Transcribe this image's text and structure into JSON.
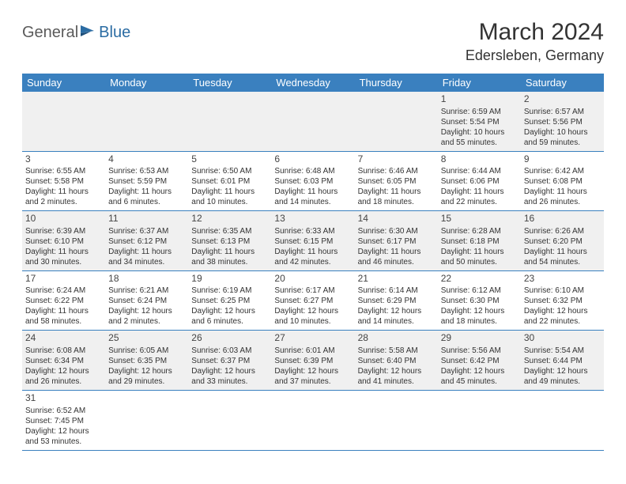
{
  "logo": {
    "text1": "General",
    "text2": "Blue"
  },
  "title": "March 2024",
  "location": "Edersleben, Germany",
  "colors": {
    "header_bg": "#3a80bf",
    "header_text": "#ffffff",
    "row_alt": "#f0f0f0",
    "border": "#3a80bf",
    "logo_gray": "#5a5a5a",
    "logo_blue": "#2b6ca3"
  },
  "daysOfWeek": [
    "Sunday",
    "Monday",
    "Tuesday",
    "Wednesday",
    "Thursday",
    "Friday",
    "Saturday"
  ],
  "weeks": [
    [
      null,
      null,
      null,
      null,
      null,
      {
        "n": "1",
        "sr": "6:59 AM",
        "ss": "5:54 PM",
        "dl": "10 hours and 55 minutes."
      },
      {
        "n": "2",
        "sr": "6:57 AM",
        "ss": "5:56 PM",
        "dl": "10 hours and 59 minutes."
      }
    ],
    [
      {
        "n": "3",
        "sr": "6:55 AM",
        "ss": "5:58 PM",
        "dl": "11 hours and 2 minutes."
      },
      {
        "n": "4",
        "sr": "6:53 AM",
        "ss": "5:59 PM",
        "dl": "11 hours and 6 minutes."
      },
      {
        "n": "5",
        "sr": "6:50 AM",
        "ss": "6:01 PM",
        "dl": "11 hours and 10 minutes."
      },
      {
        "n": "6",
        "sr": "6:48 AM",
        "ss": "6:03 PM",
        "dl": "11 hours and 14 minutes."
      },
      {
        "n": "7",
        "sr": "6:46 AM",
        "ss": "6:05 PM",
        "dl": "11 hours and 18 minutes."
      },
      {
        "n": "8",
        "sr": "6:44 AM",
        "ss": "6:06 PM",
        "dl": "11 hours and 22 minutes."
      },
      {
        "n": "9",
        "sr": "6:42 AM",
        "ss": "6:08 PM",
        "dl": "11 hours and 26 minutes."
      }
    ],
    [
      {
        "n": "10",
        "sr": "6:39 AM",
        "ss": "6:10 PM",
        "dl": "11 hours and 30 minutes."
      },
      {
        "n": "11",
        "sr": "6:37 AM",
        "ss": "6:12 PM",
        "dl": "11 hours and 34 minutes."
      },
      {
        "n": "12",
        "sr": "6:35 AM",
        "ss": "6:13 PM",
        "dl": "11 hours and 38 minutes."
      },
      {
        "n": "13",
        "sr": "6:33 AM",
        "ss": "6:15 PM",
        "dl": "11 hours and 42 minutes."
      },
      {
        "n": "14",
        "sr": "6:30 AM",
        "ss": "6:17 PM",
        "dl": "11 hours and 46 minutes."
      },
      {
        "n": "15",
        "sr": "6:28 AM",
        "ss": "6:18 PM",
        "dl": "11 hours and 50 minutes."
      },
      {
        "n": "16",
        "sr": "6:26 AM",
        "ss": "6:20 PM",
        "dl": "11 hours and 54 minutes."
      }
    ],
    [
      {
        "n": "17",
        "sr": "6:24 AM",
        "ss": "6:22 PM",
        "dl": "11 hours and 58 minutes."
      },
      {
        "n": "18",
        "sr": "6:21 AM",
        "ss": "6:24 PM",
        "dl": "12 hours and 2 minutes."
      },
      {
        "n": "19",
        "sr": "6:19 AM",
        "ss": "6:25 PM",
        "dl": "12 hours and 6 minutes."
      },
      {
        "n": "20",
        "sr": "6:17 AM",
        "ss": "6:27 PM",
        "dl": "12 hours and 10 minutes."
      },
      {
        "n": "21",
        "sr": "6:14 AM",
        "ss": "6:29 PM",
        "dl": "12 hours and 14 minutes."
      },
      {
        "n": "22",
        "sr": "6:12 AM",
        "ss": "6:30 PM",
        "dl": "12 hours and 18 minutes."
      },
      {
        "n": "23",
        "sr": "6:10 AM",
        "ss": "6:32 PM",
        "dl": "12 hours and 22 minutes."
      }
    ],
    [
      {
        "n": "24",
        "sr": "6:08 AM",
        "ss": "6:34 PM",
        "dl": "12 hours and 26 minutes."
      },
      {
        "n": "25",
        "sr": "6:05 AM",
        "ss": "6:35 PM",
        "dl": "12 hours and 29 minutes."
      },
      {
        "n": "26",
        "sr": "6:03 AM",
        "ss": "6:37 PM",
        "dl": "12 hours and 33 minutes."
      },
      {
        "n": "27",
        "sr": "6:01 AM",
        "ss": "6:39 PM",
        "dl": "12 hours and 37 minutes."
      },
      {
        "n": "28",
        "sr": "5:58 AM",
        "ss": "6:40 PM",
        "dl": "12 hours and 41 minutes."
      },
      {
        "n": "29",
        "sr": "5:56 AM",
        "ss": "6:42 PM",
        "dl": "12 hours and 45 minutes."
      },
      {
        "n": "30",
        "sr": "5:54 AM",
        "ss": "6:44 PM",
        "dl": "12 hours and 49 minutes."
      }
    ],
    [
      {
        "n": "31",
        "sr": "6:52 AM",
        "ss": "7:45 PM",
        "dl": "12 hours and 53 minutes."
      },
      null,
      null,
      null,
      null,
      null,
      null
    ]
  ],
  "labels": {
    "sunrise": "Sunrise: ",
    "sunset": "Sunset: ",
    "daylight": "Daylight: "
  }
}
